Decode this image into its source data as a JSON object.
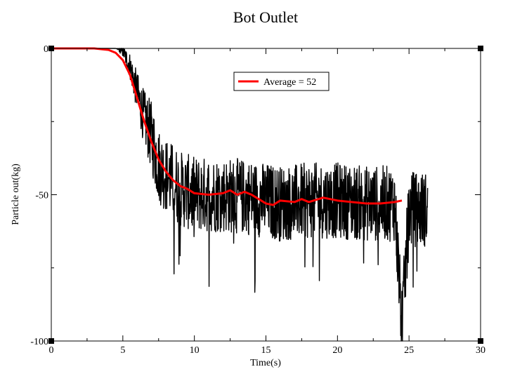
{
  "chart_data": {
    "type": "line",
    "title": "Bot Outlet",
    "xlabel": "Time(s)",
    "ylabel": "Particle out(kg)",
    "xlim": [
      0,
      30
    ],
    "ylim": [
      -100,
      0
    ],
    "x_ticks": [
      0,
      5,
      10,
      15,
      20,
      25,
      30
    ],
    "x_tick_labels": [
      "0",
      "5",
      "10",
      "15",
      "20",
      "25",
      "30"
    ],
    "y_ticks": [
      0,
      -50,
      -100
    ],
    "y_tick_labels": [
      "0",
      "-50",
      "-100"
    ],
    "grid": false,
    "legend_position": "top-center",
    "legend": [
      "Average = 52"
    ],
    "series": [
      {
        "color": "#000000",
        "style": "noisy",
        "x": [
          0,
          3.0,
          4.5,
          5.0,
          5.5,
          6.0,
          6.5,
          7.0,
          7.5,
          8.0,
          9.0,
          10.0,
          12.0,
          14.0,
          16.0,
          18.0,
          20.0,
          22.0,
          24.0,
          24.5,
          25.0,
          26.3
        ],
        "values": [
          0,
          0,
          0,
          -1,
          -6,
          -15,
          -24,
          -30,
          -40,
          -43,
          -48,
          -50,
          -50,
          -51,
          -53,
          -52,
          -52,
          -53,
          -53,
          -95,
          -55,
          -55
        ]
      },
      {
        "name": "Average = 52",
        "color": "#ff0000",
        "x": [
          0,
          3.0,
          4.0,
          4.5,
          5.0,
          5.5,
          6.0,
          6.5,
          7.0,
          7.5,
          8.0,
          8.5,
          9.0,
          9.5,
          10.0,
          11.0,
          12.0,
          12.5,
          13.0,
          13.5,
          14.0,
          14.5,
          15.0,
          15.5,
          16.0,
          17.0,
          17.5,
          18.0,
          19.0,
          20.0,
          21.0,
          22.0,
          23.0,
          24.0,
          24.5
        ],
        "values": [
          0,
          0,
          -0.5,
          -1.5,
          -4,
          -9,
          -17,
          -25,
          -32,
          -38,
          -42,
          -45,
          -47,
          -48,
          -49.5,
          -50,
          -49.5,
          -48.5,
          -50,
          -49,
          -50,
          -51.5,
          -53,
          -53.5,
          -52,
          -52.5,
          -51.5,
          -52.5,
          -51,
          -52,
          -52.5,
          -53,
          -53,
          -52.5,
          -52
        ]
      }
    ]
  }
}
